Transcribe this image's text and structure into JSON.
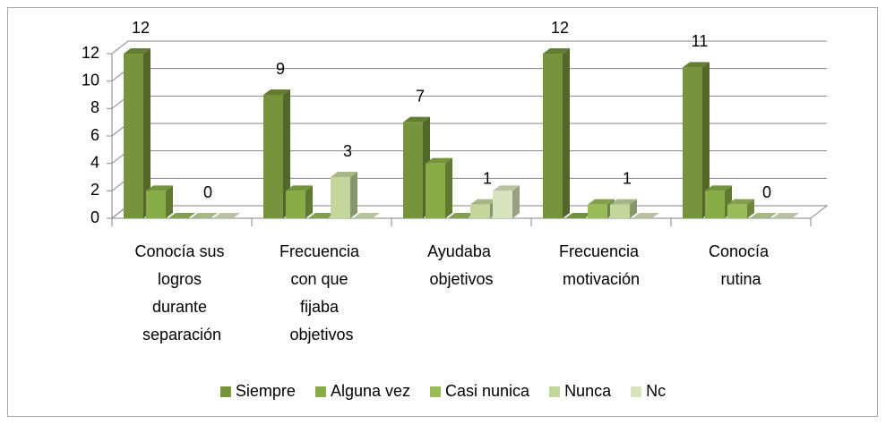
{
  "chart_data": {
    "type": "bar3d",
    "categories": [
      "Conocía sus logros durante separación",
      "Frecuencia con que fijaba objetivos",
      "Ayudaba objetivos",
      "Frecuencia motivación",
      "Conocía rutina"
    ],
    "series": [
      {
        "name": "Siempre",
        "color": "#77933c",
        "values": [
          12,
          9,
          7,
          12,
          11
        ],
        "show_labels": true
      },
      {
        "name": "Alguna vez",
        "color": "#88ad46",
        "values": [
          2,
          2,
          4,
          0,
          2
        ],
        "show_labels": false
      },
      {
        "name": "Casi nunica",
        "color": "#9bbb59",
        "values": [
          0,
          0,
          0,
          1,
          1
        ],
        "show_labels": false
      },
      {
        "name": "Nunca",
        "color": "#c3d69b",
        "values": [
          0,
          3,
          1,
          1,
          0
        ],
        "show_labels": true
      },
      {
        "name": "Nc",
        "color": "#d7e4bd",
        "values": [
          0,
          0,
          2,
          0,
          0
        ],
        "show_labels": false
      }
    ],
    "ylim": [
      0,
      12
    ],
    "yticks": [
      0,
      2,
      4,
      6,
      8,
      10,
      12
    ],
    "grid": true,
    "legend": "bottom"
  }
}
